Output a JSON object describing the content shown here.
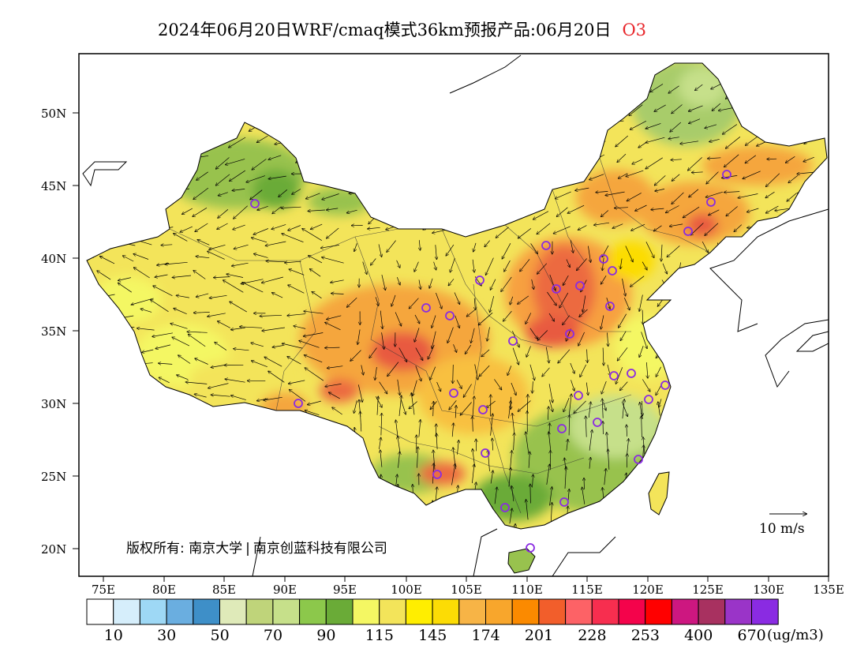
{
  "title": {
    "main": "2024年06月20日WRF/cmaq模式36km预报产品:06月20日",
    "pollutant": "O3"
  },
  "map": {
    "lat_ticks": [
      "50N",
      "45N",
      "40N",
      "35N",
      "30N",
      "25N",
      "20N"
    ],
    "lon_ticks": [
      "75E",
      "80E",
      "85E",
      "90E",
      "95E",
      "100E",
      "105E",
      "110E",
      "115E",
      "120E",
      "125E",
      "130E",
      "135E"
    ],
    "copyright_prefix": "版权所有:",
    "copyright_org1": "南京大学",
    "copyright_org2": "南京创蓝科技有限公司",
    "wind_scale_label": "10 m/s",
    "colors": {
      "land_base": "#f0e050",
      "ocean": "#ffffff",
      "station_marker": "#8a2be2",
      "high_o3": "#e85a40",
      "mid_o3": "#f5a63c",
      "low_o3": "#98c24e"
    }
  },
  "colorbar": {
    "colors": [
      "#ffffff",
      "#d6eefb",
      "#9ed8f5",
      "#6aaee0",
      "#3e8fc8",
      "#dfeab9",
      "#bfd47a",
      "#c6e08a",
      "#8cc84b",
      "#6aab37",
      "#f4f763",
      "#f3e45a",
      "#ffee00",
      "#fcdc05",
      "#f7b446",
      "#f8a62c",
      "#fb8a00",
      "#f25e2b",
      "#fd6266",
      "#f72e4f",
      "#f4034b",
      "#ff0000",
      "#cd1780",
      "#a83160",
      "#9a34c8",
      "#8a2be2"
    ],
    "labels": [
      "10",
      "30",
      "50",
      "70",
      "90",
      "115",
      "145",
      "174",
      "201",
      "228",
      "253",
      "400",
      "670"
    ],
    "unit": "(ug/m3)"
  }
}
